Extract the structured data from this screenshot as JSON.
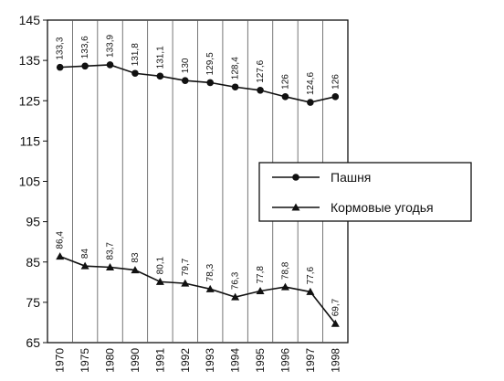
{
  "chart_data": {
    "type": "line",
    "categories": [
      "1970",
      "1975",
      "1980",
      "1990",
      "1991",
      "1992",
      "1993",
      "1994",
      "1995",
      "1996",
      "1997",
      "1998"
    ],
    "ylim": [
      65,
      145
    ],
    "yticks": [
      65,
      75,
      85,
      95,
      105,
      115,
      125,
      135,
      145
    ],
    "ytick_labels": [
      "65",
      "75",
      "85",
      "95",
      "105",
      "115",
      "125",
      "135",
      "145"
    ],
    "grid": "vertical",
    "legend_position": "right",
    "series": [
      {
        "name": "Пашня",
        "marker": "circle",
        "color": "#111111",
        "values": [
          133.3,
          133.6,
          133.9,
          131.8,
          131.1,
          130,
          129.5,
          128.4,
          127.6,
          126,
          124.6,
          126
        ],
        "labels": [
          "133,3",
          "133,6",
          "133,9",
          "131,8",
          "131,1",
          "130",
          "129,5",
          "128,4",
          "127,6",
          "126",
          "124,6",
          "126"
        ]
      },
      {
        "name": "Кормовые угодья",
        "marker": "triangle",
        "color": "#111111",
        "values": [
          86.4,
          84,
          83.7,
          83,
          80.1,
          79.7,
          78.3,
          76.3,
          77.8,
          78.8,
          77.6,
          69.7
        ],
        "labels": [
          "86,4",
          "84",
          "83,7",
          "83",
          "80,1",
          "79,7",
          "78,3",
          "76,3",
          "77,8",
          "78,8",
          "77,6",
          "69,7"
        ]
      }
    ]
  }
}
